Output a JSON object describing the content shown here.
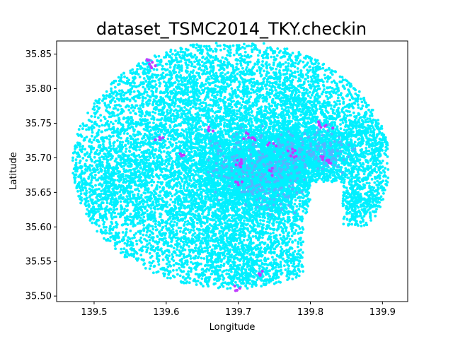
{
  "chart_data": {
    "type": "scatter",
    "title": "dataset_TSMC2014_TKY.checkin",
    "xlabel": "Longitude",
    "ylabel": "Latitude",
    "xlim": [
      139.448,
      139.935
    ],
    "ylim": [
      35.492,
      35.869
    ],
    "xticks": [
      139.5,
      139.6,
      139.7,
      139.8,
      139.9
    ],
    "xtick_labels": [
      "139.5",
      "139.6",
      "139.7",
      "139.8",
      "139.9"
    ],
    "yticks": [
      35.5,
      35.55,
      35.6,
      35.65,
      35.7,
      35.75,
      35.8,
      35.85
    ],
    "ytick_labels": [
      "35.50",
      "35.55",
      "35.60",
      "35.65",
      "35.70",
      "35.75",
      "35.80",
      "35.85"
    ],
    "grid": false,
    "legend": "none",
    "colormap": "cool",
    "point_color_main": "#00f0ff",
    "point_color_mid": "#55b4ff",
    "point_color_hot": "#c03cff",
    "clusters": [
      {
        "lon": 139.7,
        "lat": 35.69,
        "spread": 0.045,
        "weight": 0.22
      },
      {
        "lon": 139.77,
        "lat": 35.7,
        "spread": 0.035,
        "weight": 0.14
      },
      {
        "lon": 139.74,
        "lat": 35.66,
        "spread": 0.035,
        "weight": 0.1
      },
      {
        "lon": 139.82,
        "lat": 35.71,
        "spread": 0.03,
        "weight": 0.06
      },
      {
        "lon": 139.87,
        "lat": 35.64,
        "spread": 0.025,
        "weight": 0.04
      },
      {
        "lon": 139.65,
        "lat": 35.6,
        "spread": 0.05,
        "weight": 0.08
      },
      {
        "lon": 139.58,
        "lat": 35.7,
        "spread": 0.05,
        "weight": 0.07
      },
      {
        "lon": 139.52,
        "lat": 35.66,
        "spread": 0.04,
        "weight": 0.05
      },
      {
        "lon": 139.72,
        "lat": 35.55,
        "spread": 0.04,
        "weight": 0.06
      },
      {
        "lon": 139.68,
        "lat": 35.8,
        "spread": 0.05,
        "weight": 0.06
      },
      {
        "lon": 139.79,
        "lat": 35.78,
        "spread": 0.04,
        "weight": 0.05
      },
      {
        "lon": 139.6,
        "lat": 35.78,
        "spread": 0.04,
        "weight": 0.04
      },
      {
        "lon": 139.88,
        "lat": 35.73,
        "spread": 0.025,
        "weight": 0.03
      }
    ],
    "hot_points": [
      {
        "lon": 139.7,
        "lat": 35.69
      },
      {
        "lon": 139.703,
        "lat": 35.693
      },
      {
        "lon": 139.698,
        "lat": 35.66
      },
      {
        "lon": 139.745,
        "lat": 35.68
      },
      {
        "lon": 139.773,
        "lat": 35.708
      },
      {
        "lon": 139.775,
        "lat": 35.7
      },
      {
        "lon": 139.71,
        "lat": 35.73
      },
      {
        "lon": 139.72,
        "lat": 35.728
      },
      {
        "lon": 139.818,
        "lat": 35.7
      },
      {
        "lon": 139.825,
        "lat": 35.697
      },
      {
        "lon": 139.59,
        "lat": 35.73
      },
      {
        "lon": 139.58,
        "lat": 35.83
      },
      {
        "lon": 139.577,
        "lat": 35.84
      },
      {
        "lon": 139.812,
        "lat": 35.75
      },
      {
        "lon": 139.825,
        "lat": 35.748
      },
      {
        "lon": 139.73,
        "lat": 35.53
      },
      {
        "lon": 139.7,
        "lat": 35.51
      },
      {
        "lon": 139.62,
        "lat": 35.705
      },
      {
        "lon": 139.66,
        "lat": 35.74
      },
      {
        "lon": 139.745,
        "lat": 35.72
      }
    ]
  }
}
